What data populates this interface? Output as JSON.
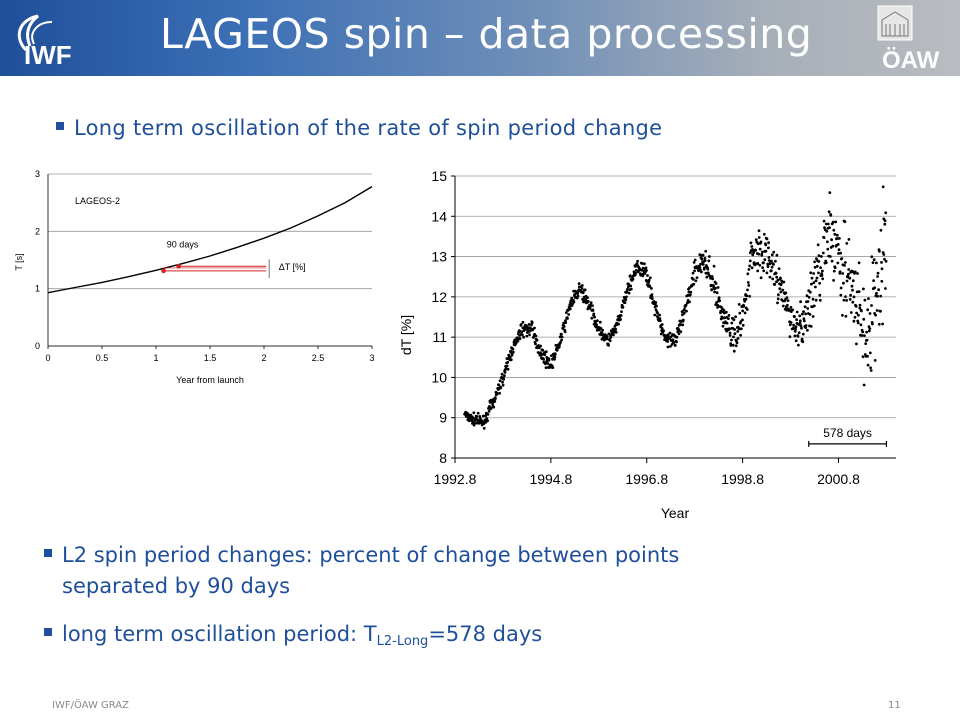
{
  "header": {
    "title": "LAGEOS spin – data processing",
    "left_logo_text": "IWF",
    "right_logo_text": "ÖAW"
  },
  "bullets": {
    "b1": "Long term oscillation of the rate of spin period change",
    "b2_line1": "L2 spin period changes: percent of change between points",
    "b2_line2": "separated by 90 days",
    "b3_prefix": "long term oscillation period: T",
    "b3_sub": "L2-Long",
    "b3_suffix": "=578 days"
  },
  "footer": {
    "left": "IWF/ÖAW GRAZ",
    "page": "11"
  },
  "colors": {
    "brand_blue": "#1f4f9a",
    "marker_red": "#d42020"
  },
  "chart_data": [
    {
      "type": "line",
      "title": "LAGEOS-2",
      "xlabel": "Year from launch",
      "ylabel": "T [s]",
      "xlim": [
        0,
        3
      ],
      "ylim": [
        0,
        3
      ],
      "xticks": [
        "0",
        "0.5",
        "1",
        "1.5",
        "2",
        "2.5",
        "3"
      ],
      "yticks": [
        "0",
        "1",
        "2",
        "3"
      ],
      "grid": "horizontal",
      "x": [
        0,
        0.25,
        0.5,
        0.75,
        1.0,
        1.25,
        1.5,
        1.75,
        2.0,
        2.25,
        2.5,
        2.75,
        3.0
      ],
      "y": [
        0.93,
        1.02,
        1.11,
        1.21,
        1.32,
        1.44,
        1.57,
        1.72,
        1.88,
        2.06,
        2.27,
        2.5,
        2.78
      ],
      "annotations": [
        {
          "text": "90 days",
          "x": 1.1,
          "y": 1.72
        },
        {
          "text": "ΔT [%]",
          "x": 2.1,
          "y": 1.38
        }
      ],
      "marked_points": [
        {
          "x": 1.07,
          "y": 1.31
        },
        {
          "x": 1.21,
          "y": 1.39
        }
      ]
    },
    {
      "type": "scatter",
      "xlabel": "Year",
      "ylabel": "dT [%]",
      "xlim": [
        1992.8,
        2002.0
      ],
      "ylim": [
        8,
        15
      ],
      "xticks": [
        "1992.8",
        "1994.8",
        "1996.8",
        "1998.8",
        "2000.8"
      ],
      "yticks": [
        "8",
        "9",
        "10",
        "11",
        "12",
        "13",
        "14",
        "15"
      ],
      "grid": "horizontal",
      "series": [
        {
          "x": [
            1993.0,
            1993.2,
            1993.4,
            1993.6,
            1993.8,
            1994.0,
            1994.2,
            1994.4,
            1994.6,
            1994.8,
            1995.0,
            1995.2,
            1995.4,
            1995.6,
            1995.8,
            1996.0,
            1996.2,
            1996.4,
            1996.6,
            1996.8,
            1997.0,
            1997.2,
            1997.4,
            1997.6,
            1997.8,
            1998.0,
            1998.2,
            1998.4,
            1998.6,
            1998.8,
            1999.0,
            1999.2,
            1999.4,
            1999.6,
            1999.8,
            2000.0,
            2000.2,
            2000.4,
            2000.6,
            2000.8,
            2001.0,
            2001.2,
            2001.4,
            2001.6,
            2001.8
          ],
          "y": [
            9.1,
            8.95,
            8.9,
            9.4,
            10.0,
            10.7,
            11.2,
            11.2,
            10.6,
            10.3,
            10.9,
            11.8,
            12.2,
            11.8,
            11.2,
            10.9,
            11.3,
            12.2,
            12.7,
            12.6,
            11.6,
            11.0,
            10.9,
            11.6,
            12.7,
            12.9,
            12.3,
            11.5,
            11.0,
            11.5,
            13.1,
            13.2,
            12.8,
            12.2,
            11.5,
            11.1,
            11.8,
            12.8,
            13.4,
            13.2,
            12.3,
            11.6,
            10.9,
            12.0,
            13.4
          ],
          "scatter_spread": [
            0.1,
            0.1,
            0.1,
            0.12,
            0.12,
            0.12,
            0.12,
            0.12,
            0.12,
            0.12,
            0.12,
            0.12,
            0.12,
            0.12,
            0.12,
            0.12,
            0.12,
            0.15,
            0.15,
            0.15,
            0.15,
            0.15,
            0.18,
            0.18,
            0.2,
            0.25,
            0.25,
            0.25,
            0.3,
            0.3,
            0.4,
            0.4,
            0.4,
            0.4,
            0.3,
            0.4,
            0.5,
            0.6,
            0.7,
            0.8,
            0.9,
            0.9,
            0.9,
            1.0,
            1.0
          ]
        }
      ],
      "annotations": [
        {
          "text": "578 days",
          "from": 2000.18,
          "to": 2001.8,
          "y": 8.35
        }
      ]
    }
  ]
}
